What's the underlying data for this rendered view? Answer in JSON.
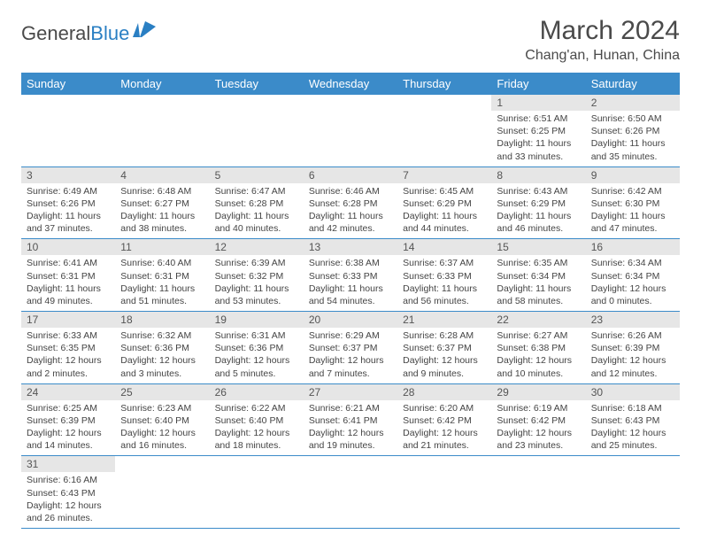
{
  "logo": {
    "text1": "General",
    "text2": "Blue"
  },
  "title": "March 2024",
  "location": "Chang'an, Hunan, China",
  "colors": {
    "header_bg": "#3b8bc9",
    "header_fg": "#ffffff",
    "daynum_bg": "#e6e6e6",
    "border": "#3b8bc9",
    "logo_accent": "#2a7fc3"
  },
  "day_headers": [
    "Sunday",
    "Monday",
    "Tuesday",
    "Wednesday",
    "Thursday",
    "Friday",
    "Saturday"
  ],
  "weeks": [
    [
      null,
      null,
      null,
      null,
      null,
      {
        "n": "1",
        "sr": "Sunrise: 6:51 AM",
        "ss": "Sunset: 6:25 PM",
        "dl": "Daylight: 11 hours and 33 minutes."
      },
      {
        "n": "2",
        "sr": "Sunrise: 6:50 AM",
        "ss": "Sunset: 6:26 PM",
        "dl": "Daylight: 11 hours and 35 minutes."
      }
    ],
    [
      {
        "n": "3",
        "sr": "Sunrise: 6:49 AM",
        "ss": "Sunset: 6:26 PM",
        "dl": "Daylight: 11 hours and 37 minutes."
      },
      {
        "n": "4",
        "sr": "Sunrise: 6:48 AM",
        "ss": "Sunset: 6:27 PM",
        "dl": "Daylight: 11 hours and 38 minutes."
      },
      {
        "n": "5",
        "sr": "Sunrise: 6:47 AM",
        "ss": "Sunset: 6:28 PM",
        "dl": "Daylight: 11 hours and 40 minutes."
      },
      {
        "n": "6",
        "sr": "Sunrise: 6:46 AM",
        "ss": "Sunset: 6:28 PM",
        "dl": "Daylight: 11 hours and 42 minutes."
      },
      {
        "n": "7",
        "sr": "Sunrise: 6:45 AM",
        "ss": "Sunset: 6:29 PM",
        "dl": "Daylight: 11 hours and 44 minutes."
      },
      {
        "n": "8",
        "sr": "Sunrise: 6:43 AM",
        "ss": "Sunset: 6:29 PM",
        "dl": "Daylight: 11 hours and 46 minutes."
      },
      {
        "n": "9",
        "sr": "Sunrise: 6:42 AM",
        "ss": "Sunset: 6:30 PM",
        "dl": "Daylight: 11 hours and 47 minutes."
      }
    ],
    [
      {
        "n": "10",
        "sr": "Sunrise: 6:41 AM",
        "ss": "Sunset: 6:31 PM",
        "dl": "Daylight: 11 hours and 49 minutes."
      },
      {
        "n": "11",
        "sr": "Sunrise: 6:40 AM",
        "ss": "Sunset: 6:31 PM",
        "dl": "Daylight: 11 hours and 51 minutes."
      },
      {
        "n": "12",
        "sr": "Sunrise: 6:39 AM",
        "ss": "Sunset: 6:32 PM",
        "dl": "Daylight: 11 hours and 53 minutes."
      },
      {
        "n": "13",
        "sr": "Sunrise: 6:38 AM",
        "ss": "Sunset: 6:33 PM",
        "dl": "Daylight: 11 hours and 54 minutes."
      },
      {
        "n": "14",
        "sr": "Sunrise: 6:37 AM",
        "ss": "Sunset: 6:33 PM",
        "dl": "Daylight: 11 hours and 56 minutes."
      },
      {
        "n": "15",
        "sr": "Sunrise: 6:35 AM",
        "ss": "Sunset: 6:34 PM",
        "dl": "Daylight: 11 hours and 58 minutes."
      },
      {
        "n": "16",
        "sr": "Sunrise: 6:34 AM",
        "ss": "Sunset: 6:34 PM",
        "dl": "Daylight: 12 hours and 0 minutes."
      }
    ],
    [
      {
        "n": "17",
        "sr": "Sunrise: 6:33 AM",
        "ss": "Sunset: 6:35 PM",
        "dl": "Daylight: 12 hours and 2 minutes."
      },
      {
        "n": "18",
        "sr": "Sunrise: 6:32 AM",
        "ss": "Sunset: 6:36 PM",
        "dl": "Daylight: 12 hours and 3 minutes."
      },
      {
        "n": "19",
        "sr": "Sunrise: 6:31 AM",
        "ss": "Sunset: 6:36 PM",
        "dl": "Daylight: 12 hours and 5 minutes."
      },
      {
        "n": "20",
        "sr": "Sunrise: 6:29 AM",
        "ss": "Sunset: 6:37 PM",
        "dl": "Daylight: 12 hours and 7 minutes."
      },
      {
        "n": "21",
        "sr": "Sunrise: 6:28 AM",
        "ss": "Sunset: 6:37 PM",
        "dl": "Daylight: 12 hours and 9 minutes."
      },
      {
        "n": "22",
        "sr": "Sunrise: 6:27 AM",
        "ss": "Sunset: 6:38 PM",
        "dl": "Daylight: 12 hours and 10 minutes."
      },
      {
        "n": "23",
        "sr": "Sunrise: 6:26 AM",
        "ss": "Sunset: 6:39 PM",
        "dl": "Daylight: 12 hours and 12 minutes."
      }
    ],
    [
      {
        "n": "24",
        "sr": "Sunrise: 6:25 AM",
        "ss": "Sunset: 6:39 PM",
        "dl": "Daylight: 12 hours and 14 minutes."
      },
      {
        "n": "25",
        "sr": "Sunrise: 6:23 AM",
        "ss": "Sunset: 6:40 PM",
        "dl": "Daylight: 12 hours and 16 minutes."
      },
      {
        "n": "26",
        "sr": "Sunrise: 6:22 AM",
        "ss": "Sunset: 6:40 PM",
        "dl": "Daylight: 12 hours and 18 minutes."
      },
      {
        "n": "27",
        "sr": "Sunrise: 6:21 AM",
        "ss": "Sunset: 6:41 PM",
        "dl": "Daylight: 12 hours and 19 minutes."
      },
      {
        "n": "28",
        "sr": "Sunrise: 6:20 AM",
        "ss": "Sunset: 6:42 PM",
        "dl": "Daylight: 12 hours and 21 minutes."
      },
      {
        "n": "29",
        "sr": "Sunrise: 6:19 AM",
        "ss": "Sunset: 6:42 PM",
        "dl": "Daylight: 12 hours and 23 minutes."
      },
      {
        "n": "30",
        "sr": "Sunrise: 6:18 AM",
        "ss": "Sunset: 6:43 PM",
        "dl": "Daylight: 12 hours and 25 minutes."
      }
    ],
    [
      {
        "n": "31",
        "sr": "Sunrise: 6:16 AM",
        "ss": "Sunset: 6:43 PM",
        "dl": "Daylight: 12 hours and 26 minutes."
      },
      null,
      null,
      null,
      null,
      null,
      null
    ]
  ]
}
